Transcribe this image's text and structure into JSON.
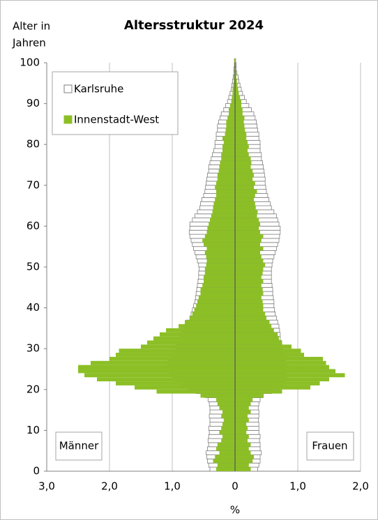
{
  "chart_data": {
    "type": "population_pyramid",
    "title": "Altersstruktur 2024",
    "ylabel": [
      "Alter in",
      "Jahren"
    ],
    "xlabel": "%",
    "annotations": {
      "left": "Männer",
      "right": "Frauen"
    },
    "xlim": [
      -3,
      2
    ],
    "xticks": [
      {
        "value": -3,
        "label": "3,0"
      },
      {
        "value": -2,
        "label": "2,0"
      },
      {
        "value": -1,
        "label": "1,0"
      },
      0,
      {
        "value": 1,
        "label": "1,0"
      },
      {
        "value": 2,
        "label": "2,0"
      }
    ],
    "ylim": [
      0,
      100
    ],
    "yticks": [
      0,
      10,
      20,
      30,
      40,
      50,
      60,
      70,
      80,
      90,
      100
    ],
    "grid": true,
    "legend": "top-left",
    "series": [
      {
        "name": "Karlsruhe",
        "color": "#ffffff",
        "stroke": "#7f7f7f",
        "men": [
          -0.4,
          -0.42,
          -0.44,
          -0.45,
          -0.46,
          -0.44,
          -0.42,
          -0.43,
          -0.42,
          -0.41,
          -0.42,
          -0.4,
          -0.4,
          -0.41,
          -0.4,
          -0.4,
          -0.41,
          -0.43,
          -0.48,
          -0.62,
          -0.75,
          -0.85,
          -0.92,
          -1.0,
          -1.05,
          -1.08,
          -1.06,
          -1.02,
          -0.98,
          -0.95,
          -0.93,
          -0.9,
          -0.88,
          -0.85,
          -0.82,
          -0.8,
          -0.78,
          -0.72,
          -0.7,
          -0.68,
          -0.66,
          -0.64,
          -0.63,
          -0.62,
          -0.61,
          -0.6,
          -0.59,
          -0.58,
          -0.58,
          -0.57,
          -0.58,
          -0.6,
          -0.62,
          -0.64,
          -0.66,
          -0.68,
          -0.7,
          -0.72,
          -0.73,
          -0.72,
          -0.72,
          -0.68,
          -0.64,
          -0.6,
          -0.56,
          -0.55,
          -0.53,
          -0.5,
          -0.48,
          -0.47,
          -0.46,
          -0.45,
          -0.44,
          -0.42,
          -0.42,
          -0.4,
          -0.38,
          -0.36,
          -0.34,
          -0.32,
          -0.32,
          -0.3,
          -0.3,
          -0.28,
          -0.28,
          -0.26,
          -0.24,
          -0.22,
          -0.18,
          -0.15,
          -0.12,
          -0.1,
          -0.08,
          -0.06,
          -0.05,
          -0.04,
          -0.03,
          -0.02,
          -0.02,
          -0.01,
          -0.01
        ],
        "women": [
          0.36,
          0.38,
          0.4,
          0.4,
          0.42,
          0.4,
          0.4,
          0.39,
          0.4,
          0.38,
          0.38,
          0.38,
          0.37,
          0.38,
          0.38,
          0.37,
          0.38,
          0.4,
          0.45,
          0.58,
          0.7,
          0.76,
          0.8,
          0.82,
          0.82,
          0.82,
          0.8,
          0.8,
          0.78,
          0.76,
          0.75,
          0.74,
          0.72,
          0.72,
          0.71,
          0.7,
          0.68,
          0.66,
          0.64,
          0.63,
          0.62,
          0.62,
          0.61,
          0.6,
          0.6,
          0.59,
          0.58,
          0.58,
          0.58,
          0.58,
          0.59,
          0.6,
          0.62,
          0.64,
          0.66,
          0.68,
          0.7,
          0.71,
          0.72,
          0.72,
          0.7,
          0.68,
          0.66,
          0.62,
          0.58,
          0.56,
          0.54,
          0.52,
          0.5,
          0.49,
          0.48,
          0.48,
          0.47,
          0.46,
          0.45,
          0.44,
          0.42,
          0.42,
          0.4,
          0.4,
          0.4,
          0.38,
          0.38,
          0.36,
          0.35,
          0.34,
          0.32,
          0.3,
          0.26,
          0.22,
          0.18,
          0.15,
          0.12,
          0.1,
          0.08,
          0.06,
          0.05,
          0.03,
          0.02,
          0.02,
          0.01
        ]
      },
      {
        "name": "Innenstadt-West",
        "color": "#8cbf26",
        "men": [
          -0.3,
          -0.28,
          -0.35,
          -0.32,
          -0.25,
          -0.3,
          -0.28,
          -0.22,
          -0.2,
          -0.25,
          -0.22,
          -0.2,
          -0.18,
          -0.22,
          -0.2,
          -0.25,
          -0.28,
          -0.3,
          -0.55,
          -1.25,
          -1.6,
          -1.9,
          -2.2,
          -2.4,
          -2.5,
          -2.5,
          -2.3,
          -2.0,
          -1.9,
          -1.85,
          -1.5,
          -1.4,
          -1.3,
          -1.2,
          -1.1,
          -0.9,
          -0.8,
          -0.72,
          -0.68,
          -0.65,
          -0.62,
          -0.6,
          -0.58,
          -0.55,
          -0.55,
          -0.52,
          -0.5,
          -0.5,
          -0.48,
          -0.48,
          -0.46,
          -0.45,
          -0.46,
          -0.48,
          -0.45,
          -0.5,
          -0.52,
          -0.48,
          -0.45,
          -0.44,
          -0.42,
          -0.4,
          -0.38,
          -0.36,
          -0.35,
          -0.34,
          -0.32,
          -0.3,
          -0.3,
          -0.32,
          -0.3,
          -0.28,
          -0.28,
          -0.26,
          -0.25,
          -0.24,
          -0.22,
          -0.22,
          -0.2,
          -0.2,
          -0.18,
          -0.2,
          -0.16,
          -0.15,
          -0.14,
          -0.14,
          -0.12,
          -0.1,
          -0.1,
          -0.08,
          -0.06,
          -0.05,
          -0.04,
          -0.04,
          -0.03,
          -0.02,
          -0.02,
          -0.01,
          -0.01,
          -0.01,
          -0.01
        ],
        "women": [
          0.25,
          0.22,
          0.28,
          0.3,
          0.25,
          0.22,
          0.25,
          0.2,
          0.22,
          0.18,
          0.2,
          0.18,
          0.22,
          0.2,
          0.25,
          0.22,
          0.25,
          0.28,
          0.45,
          0.75,
          1.2,
          1.35,
          1.5,
          1.75,
          1.6,
          1.5,
          1.45,
          1.4,
          1.1,
          1.05,
          0.9,
          0.75,
          0.7,
          0.68,
          0.62,
          0.58,
          0.55,
          0.5,
          0.48,
          0.45,
          0.45,
          0.44,
          0.42,
          0.45,
          0.44,
          0.42,
          0.45,
          0.42,
          0.44,
          0.45,
          0.48,
          0.45,
          0.42,
          0.4,
          0.45,
          0.4,
          0.42,
          0.45,
          0.4,
          0.38,
          0.4,
          0.38,
          0.35,
          0.36,
          0.33,
          0.32,
          0.3,
          0.32,
          0.35,
          0.3,
          0.32,
          0.28,
          0.3,
          0.28,
          0.25,
          0.26,
          0.25,
          0.22,
          0.2,
          0.22,
          0.2,
          0.18,
          0.18,
          0.16,
          0.15,
          0.14,
          0.15,
          0.12,
          0.12,
          0.1,
          0.1,
          0.08,
          0.06,
          0.05,
          0.04,
          0.03,
          0.02,
          0.02,
          0.01,
          0.01,
          0.01
        ]
      }
    ]
  }
}
